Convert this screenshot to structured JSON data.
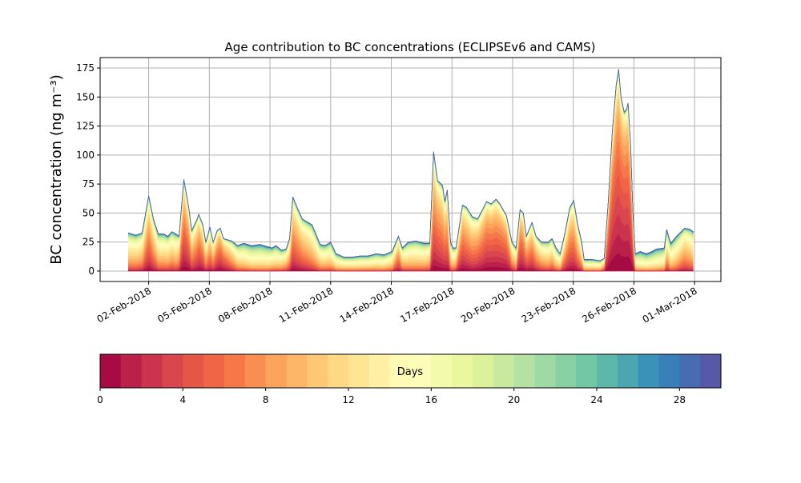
{
  "chart_data": {
    "type": "area",
    "stacked": true,
    "title": "Age contribution to BC concentrations (ECLIPSEv6 and CAMS)",
    "ylabel": "BC concentration (ng m⁻³)",
    "xlabel": "",
    "ylim": [
      -9,
      184
    ],
    "xlim_days_since_01Feb2018": [
      -1.4,
      29.3
    ],
    "grid": true,
    "yticks": [
      0,
      25,
      50,
      75,
      100,
      125,
      150,
      175
    ],
    "xticks": [
      {
        "day": 1,
        "label": "02-Feb-2018"
      },
      {
        "day": 4,
        "label": "05-Feb-2018"
      },
      {
        "day": 7,
        "label": "08-Feb-2018"
      },
      {
        "day": 10,
        "label": "11-Feb-2018"
      },
      {
        "day": 13,
        "label": "14-Feb-2018"
      },
      {
        "day": 16,
        "label": "17-Feb-2018"
      },
      {
        "day": 19,
        "label": "20-Feb-2018"
      },
      {
        "day": 22,
        "label": "23-Feb-2018"
      },
      {
        "day": 25,
        "label": "26-Feb-2018"
      },
      {
        "day": 28,
        "label": "01-Mar-2018"
      }
    ],
    "n_age_classes": 30,
    "series_note_columns": [
      "day_since_01Feb2018",
      "total_bc",
      "mean_age_days"
    ],
    "series": [
      [
        0,
        33,
        12
      ],
      [
        0.37,
        31,
        12
      ],
      [
        0.68,
        33,
        11
      ],
      [
        1.0,
        65,
        7
      ],
      [
        1.24,
        45,
        9
      ],
      [
        1.48,
        32,
        12
      ],
      [
        1.75,
        32,
        12
      ],
      [
        1.95,
        30,
        12
      ],
      [
        2.15,
        34,
        11
      ],
      [
        2.35,
        32,
        12
      ],
      [
        2.5,
        30,
        10
      ],
      [
        2.74,
        79,
        5
      ],
      [
        2.98,
        55,
        6
      ],
      [
        3.13,
        35,
        9
      ],
      [
        3.4,
        45,
        7
      ],
      [
        3.48,
        49,
        6
      ],
      [
        3.68,
        40,
        7
      ],
      [
        3.83,
        25,
        10
      ],
      [
        4.03,
        38,
        8
      ],
      [
        4.19,
        25,
        9
      ],
      [
        4.39,
        35,
        6
      ],
      [
        4.54,
        37,
        5
      ],
      [
        4.7,
        28,
        6
      ],
      [
        5.1,
        26,
        10
      ],
      [
        5.4,
        22,
        13
      ],
      [
        5.7,
        24,
        14
      ],
      [
        6.1,
        22,
        15
      ],
      [
        6.5,
        23,
        15
      ],
      [
        6.9,
        21,
        15
      ],
      [
        7.1,
        20,
        14
      ],
      [
        7.3,
        22,
        14
      ],
      [
        7.57,
        18,
        13
      ],
      [
        7.8,
        19,
        12
      ],
      [
        7.97,
        28,
        10
      ],
      [
        8.13,
        64,
        7
      ],
      [
        8.37,
        54,
        8
      ],
      [
        8.6,
        45,
        9
      ],
      [
        8.88,
        42,
        10
      ],
      [
        9.08,
        40,
        11
      ],
      [
        9.32,
        30,
        12
      ],
      [
        9.48,
        23,
        13
      ],
      [
        9.72,
        22,
        13
      ],
      [
        10.0,
        25,
        13
      ],
      [
        10.27,
        15,
        14
      ],
      [
        10.67,
        12,
        14
      ],
      [
        11.06,
        12,
        14
      ],
      [
        11.45,
        13,
        14
      ],
      [
        11.85,
        13,
        14
      ],
      [
        12.25,
        15,
        14
      ],
      [
        12.64,
        14,
        14
      ],
      [
        13.04,
        17,
        13
      ],
      [
        13.35,
        30,
        8
      ],
      [
        13.55,
        20,
        12
      ],
      [
        13.83,
        25,
        13
      ],
      [
        14.22,
        26,
        13
      ],
      [
        14.62,
        24,
        13
      ],
      [
        14.9,
        24,
        12
      ],
      [
        15.09,
        103,
        6
      ],
      [
        15.29,
        78,
        6
      ],
      [
        15.53,
        74,
        7
      ],
      [
        15.65,
        60,
        7
      ],
      [
        15.77,
        70,
        7
      ],
      [
        15.93,
        25,
        12
      ],
      [
        16.05,
        20,
        13
      ],
      [
        16.2,
        20,
        11
      ],
      [
        16.52,
        57,
        6
      ],
      [
        16.72,
        55,
        7
      ],
      [
        17.0,
        47,
        8
      ],
      [
        17.27,
        45,
        7
      ],
      [
        17.51,
        53,
        6
      ],
      [
        17.71,
        60,
        5
      ],
      [
        17.94,
        58,
        5
      ],
      [
        18.18,
        62,
        5
      ],
      [
        18.37,
        58,
        5
      ],
      [
        18.69,
        48,
        5
      ],
      [
        18.97,
        25,
        10
      ],
      [
        19.17,
        20,
        12
      ],
      [
        19.37,
        53,
        5
      ],
      [
        19.53,
        50,
        6
      ],
      [
        19.68,
        30,
        7
      ],
      [
        19.96,
        42,
        7
      ],
      [
        20.16,
        30,
        9
      ],
      [
        20.43,
        25,
        11
      ],
      [
        20.75,
        25,
        12
      ],
      [
        20.95,
        28,
        11
      ],
      [
        21.15,
        20,
        13
      ],
      [
        21.35,
        15,
        13
      ],
      [
        21.55,
        30,
        9
      ],
      [
        21.83,
        55,
        7
      ],
      [
        22.02,
        61,
        7
      ],
      [
        22.22,
        40,
        9
      ],
      [
        22.42,
        25,
        11
      ],
      [
        22.54,
        10,
        14
      ],
      [
        22.93,
        10,
        14
      ],
      [
        23.33,
        9,
        14
      ],
      [
        23.53,
        11,
        10
      ],
      [
        23.73,
        60,
        4
      ],
      [
        23.93,
        120,
        3
      ],
      [
        24.12,
        160,
        3
      ],
      [
        24.24,
        174,
        3
      ],
      [
        24.36,
        150,
        3
      ],
      [
        24.52,
        137,
        3
      ],
      [
        24.64,
        140,
        3
      ],
      [
        24.71,
        145,
        3
      ],
      [
        24.83,
        110,
        3
      ],
      [
        24.95,
        50,
        5
      ],
      [
        25.07,
        15,
        15
      ],
      [
        25.31,
        17,
        16
      ],
      [
        25.62,
        15,
        16
      ],
      [
        25.9,
        17,
        16
      ],
      [
        26.1,
        19,
        16
      ],
      [
        26.5,
        20,
        15
      ],
      [
        26.62,
        36,
        11
      ],
      [
        26.82,
        24,
        14
      ],
      [
        27.1,
        30,
        13
      ],
      [
        27.5,
        37,
        10
      ],
      [
        27.77,
        36,
        11
      ],
      [
        27.93,
        34,
        12
      ]
    ]
  },
  "colorbar": {
    "label": "Days",
    "ticks": [
      "0",
      "4",
      "8",
      "12",
      "16",
      "20",
      "24",
      "28"
    ],
    "range": [
      0,
      30
    ],
    "colormap_anchors": [
      "#9e0142",
      "#d53e4f",
      "#f46d43",
      "#fdae61",
      "#fee08b",
      "#ffffbf",
      "#e6f598",
      "#abdda4",
      "#66c2a5",
      "#3288bd",
      "#5e4fa2"
    ]
  }
}
